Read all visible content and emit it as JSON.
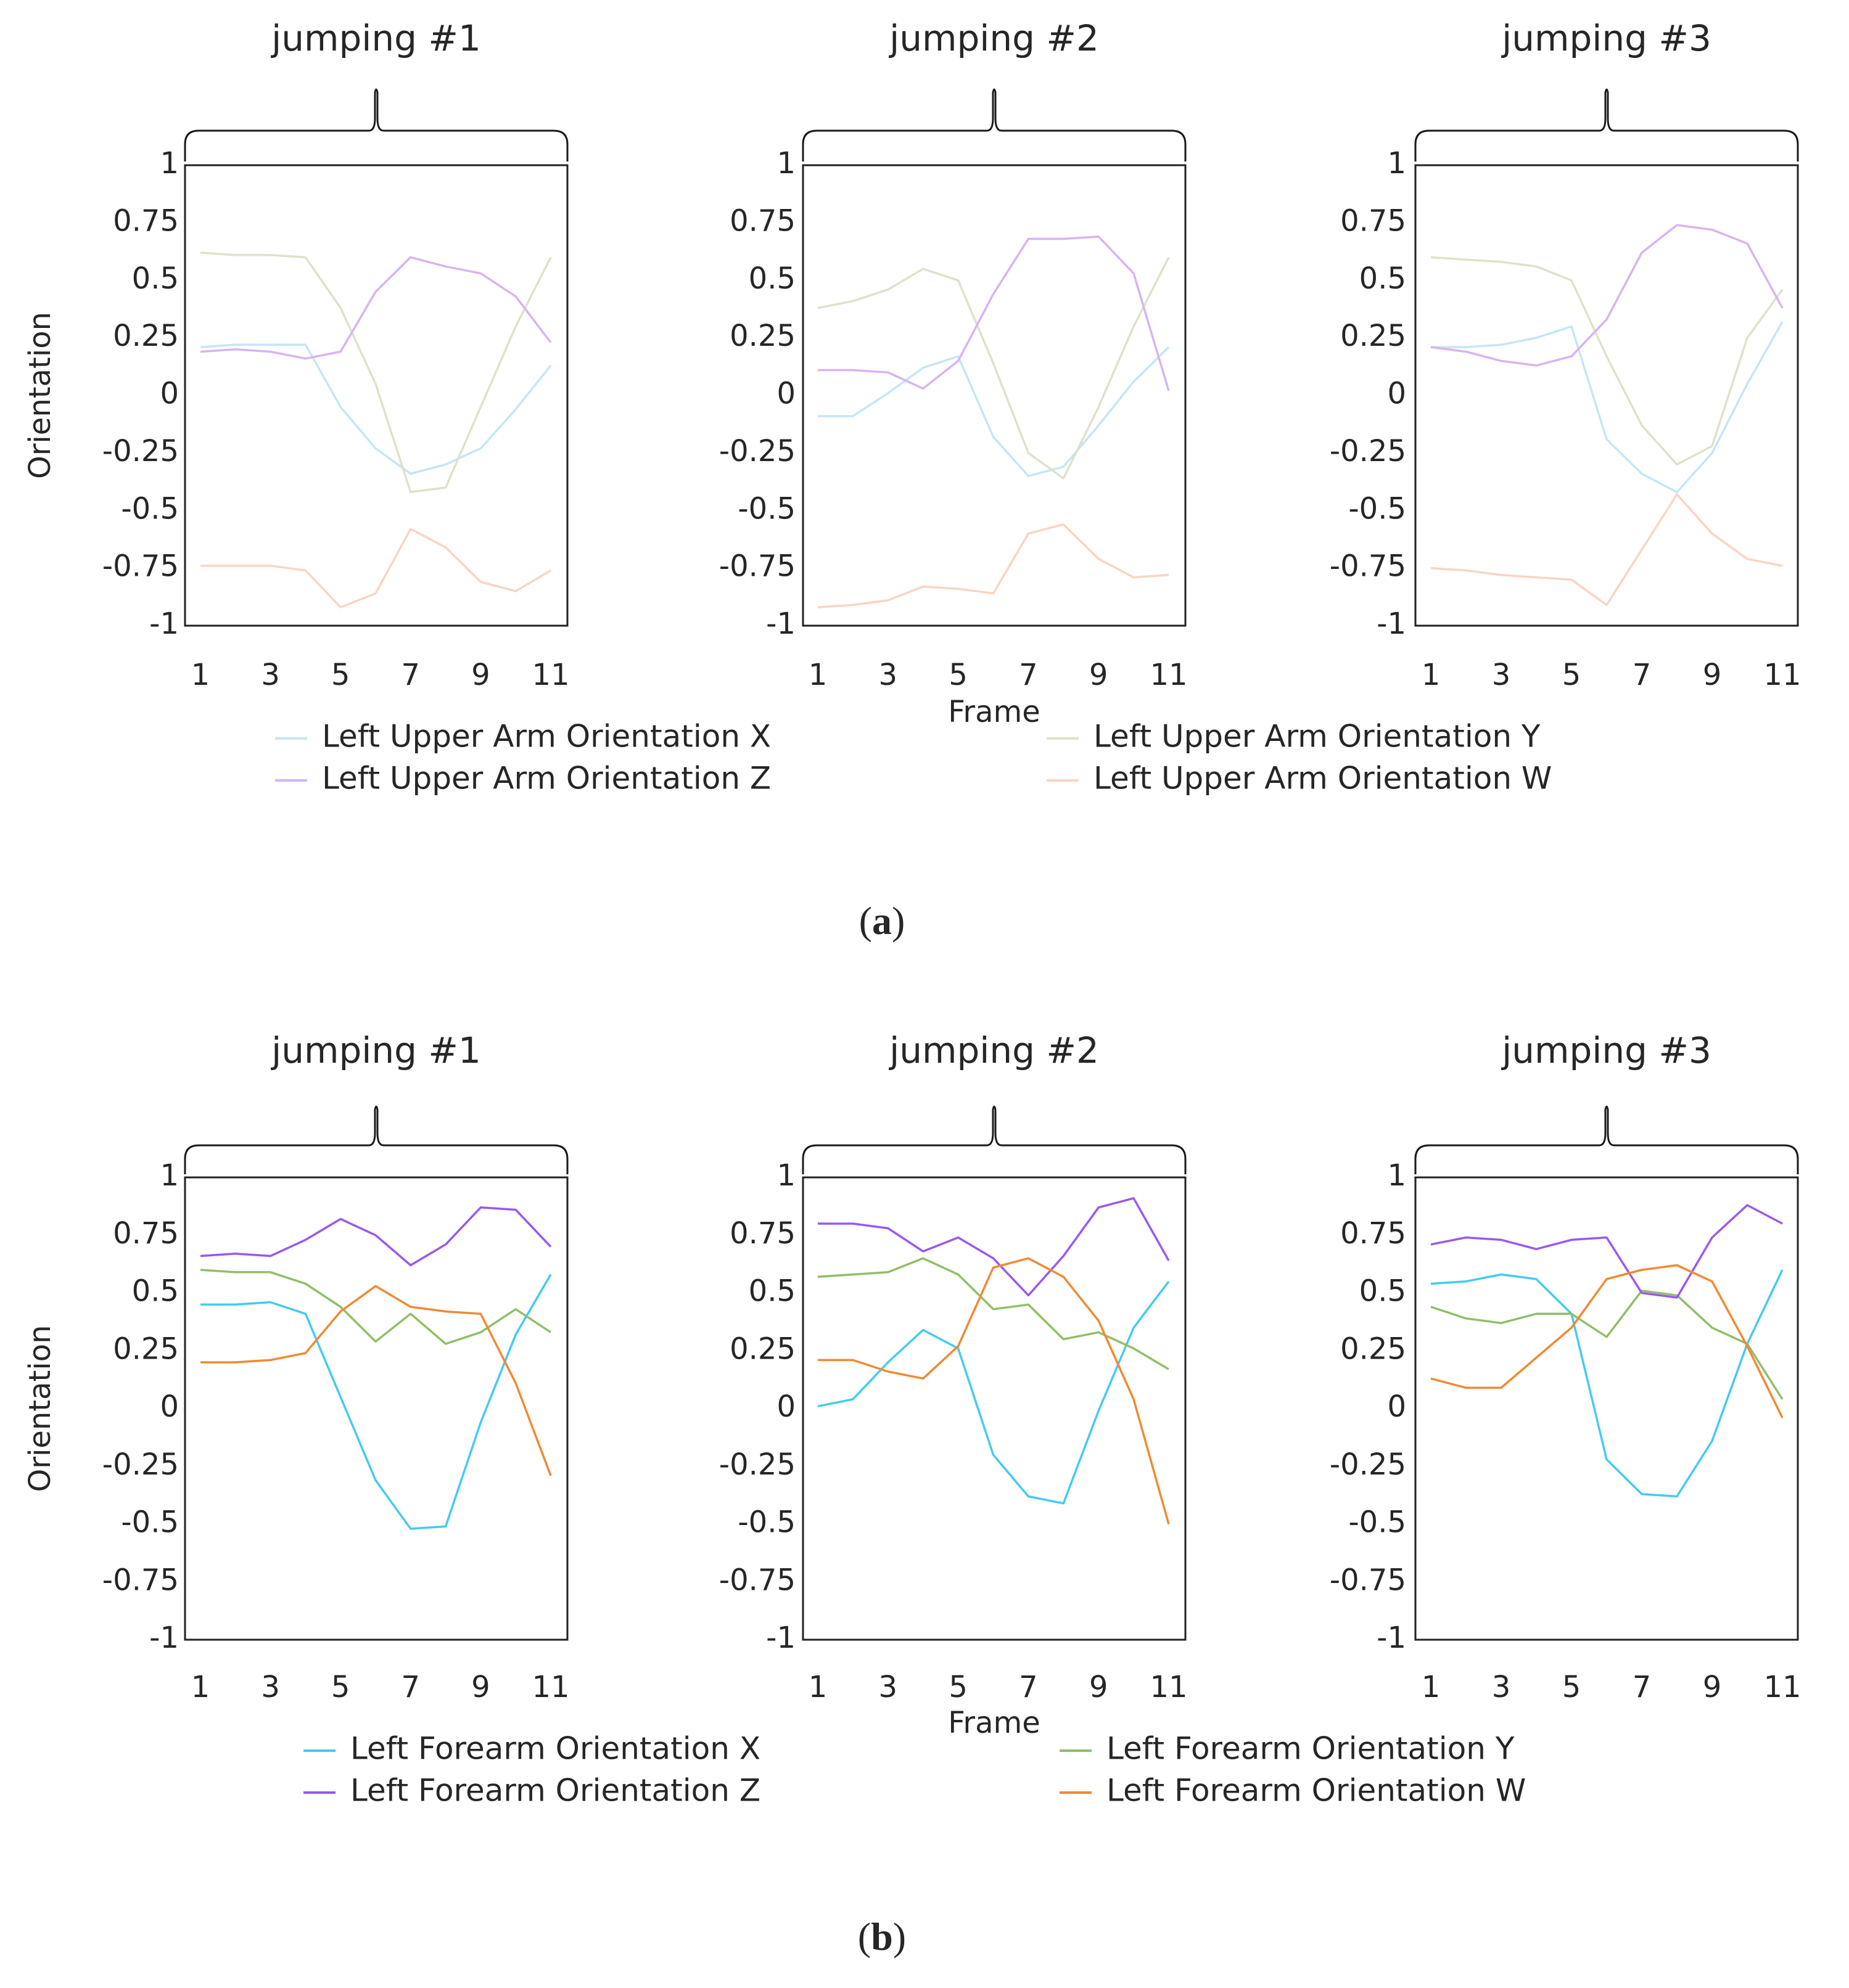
{
  "panel_labels": {
    "a": {
      "open": "(",
      "letter": "a",
      "close": ")"
    },
    "b": {
      "open": "(",
      "letter": "b",
      "close": ")"
    }
  },
  "legend_a": [
    {
      "label": "Left Upper Arm Orientation X",
      "color": "#c5e6f5"
    },
    {
      "label": "Left Upper Arm Orientation Y",
      "color": "#dde3c9"
    },
    {
      "label": "Left Upper Arm Orientation Z",
      "color": "#d7b4f3"
    },
    {
      "label": "Left Upper Arm Orientation W",
      "color": "#f8d5c3"
    }
  ],
  "legend_b": [
    {
      "label": "Left Forearm Orientation X",
      "color": "#44cbef"
    },
    {
      "label": "Left Forearm Orientation Y",
      "color": "#8fbf68"
    },
    {
      "label": "Left Forearm Orientation Z",
      "color": "#9a58f0"
    },
    {
      "label": "Left Forearm Orientation W",
      "color": "#f08a33"
    }
  ],
  "chart_data": [
    {
      "type": "line",
      "group": "a",
      "title": "jumping #1",
      "xlabel": "",
      "ylabel": "Orientation",
      "x": [
        1,
        2,
        3,
        4,
        5,
        6,
        7,
        8,
        9,
        10,
        11
      ],
      "x_ticks": [
        "1",
        "3",
        "5",
        "7",
        "9",
        "11"
      ],
      "ylim": [
        -1,
        1
      ],
      "y_ticks": [
        "1",
        "0.75",
        "0.5",
        "0.25",
        "0",
        "-0.25",
        "-0.5",
        "-0.75",
        "-1"
      ],
      "series": [
        {
          "name": "Left Upper Arm Orientation X",
          "color": "#c5e6f5",
          "values": [
            0.21,
            0.22,
            0.22,
            0.22,
            -0.05,
            -0.23,
            -0.34,
            -0.3,
            -0.23,
            -0.06,
            0.13
          ]
        },
        {
          "name": "Left Upper Arm Orientation Y",
          "color": "#dde3c9",
          "values": [
            0.62,
            0.61,
            0.61,
            0.6,
            0.38,
            0.05,
            -0.42,
            -0.4,
            -0.05,
            0.3,
            0.6
          ]
        },
        {
          "name": "Left Upper Arm Orientation Z",
          "color": "#d7b4f3",
          "values": [
            0.19,
            0.2,
            0.19,
            0.16,
            0.19,
            0.45,
            0.6,
            0.56,
            0.53,
            0.43,
            0.23
          ]
        },
        {
          "name": "Left Upper Arm Orientation W",
          "color": "#f8d5c3",
          "values": [
            -0.74,
            -0.74,
            -0.74,
            -0.76,
            -0.92,
            -0.86,
            -0.58,
            -0.66,
            -0.81,
            -0.85,
            -0.76
          ]
        }
      ]
    },
    {
      "type": "line",
      "group": "a",
      "title": "jumping #2",
      "xlabel": "Frame",
      "ylabel": "",
      "x": [
        1,
        2,
        3,
        4,
        5,
        6,
        7,
        8,
        9,
        10,
        11
      ],
      "x_ticks": [
        "1",
        "3",
        "5",
        "7",
        "9",
        "11"
      ],
      "ylim": [
        -1,
        1
      ],
      "y_ticks": [
        "1",
        "0.75",
        "0.5",
        "0.25",
        "0",
        "-0.25",
        "-0.5",
        "-0.75",
        "-1"
      ],
      "series": [
        {
          "name": "Left Upper Arm Orientation X",
          "color": "#c5e6f5",
          "values": [
            -0.09,
            -0.09,
            0.01,
            0.12,
            0.17,
            -0.18,
            -0.35,
            -0.31,
            -0.13,
            0.06,
            0.21
          ]
        },
        {
          "name": "Left Upper Arm Orientation Y",
          "color": "#dde3c9",
          "values": [
            0.38,
            0.41,
            0.46,
            0.55,
            0.5,
            0.14,
            -0.25,
            -0.36,
            -0.05,
            0.3,
            0.6
          ]
        },
        {
          "name": "Left Upper Arm Orientation Z",
          "color": "#d7b4f3",
          "values": [
            0.11,
            0.11,
            0.1,
            0.03,
            0.15,
            0.44,
            0.68,
            0.68,
            0.69,
            0.53,
            0.02
          ]
        },
        {
          "name": "Left Upper Arm Orientation W",
          "color": "#f8d5c3",
          "values": [
            -0.92,
            -0.91,
            -0.89,
            -0.83,
            -0.84,
            -0.86,
            -0.6,
            -0.56,
            -0.71,
            -0.79,
            -0.78
          ]
        }
      ]
    },
    {
      "type": "line",
      "group": "a",
      "title": "jumping #3",
      "xlabel": "",
      "ylabel": "",
      "x": [
        1,
        2,
        3,
        4,
        5,
        6,
        7,
        8,
        9,
        10,
        11
      ],
      "x_ticks": [
        "1",
        "3",
        "5",
        "7",
        "9",
        "11"
      ],
      "ylim": [
        -1,
        1
      ],
      "y_ticks": [
        "1",
        "0.75",
        "0.5",
        "0.25",
        "0",
        "-0.25",
        "-0.5",
        "-0.75",
        "-1"
      ],
      "series": [
        {
          "name": "Left Upper Arm Orientation X",
          "color": "#c5e6f5",
          "values": [
            0.21,
            0.21,
            0.22,
            0.25,
            0.3,
            -0.19,
            -0.34,
            -0.42,
            -0.25,
            0.05,
            0.32
          ]
        },
        {
          "name": "Left Upper Arm Orientation Y",
          "color": "#dde3c9",
          "values": [
            0.6,
            0.59,
            0.58,
            0.56,
            0.5,
            0.17,
            -0.13,
            -0.3,
            -0.22,
            0.25,
            0.46
          ]
        },
        {
          "name": "Left Upper Arm Orientation Z",
          "color": "#d7b4f3",
          "values": [
            0.21,
            0.19,
            0.15,
            0.13,
            0.17,
            0.33,
            0.62,
            0.74,
            0.72,
            0.66,
            0.38
          ]
        },
        {
          "name": "Left Upper Arm Orientation W",
          "color": "#f8d5c3",
          "values": [
            -0.75,
            -0.76,
            -0.78,
            -0.79,
            -0.8,
            -0.91,
            -0.67,
            -0.43,
            -0.6,
            -0.71,
            -0.74
          ]
        }
      ]
    },
    {
      "type": "line",
      "group": "b",
      "title": "jumping #1",
      "xlabel": "",
      "ylabel": "Orientation",
      "x": [
        1,
        2,
        3,
        4,
        5,
        6,
        7,
        8,
        9,
        10,
        11
      ],
      "x_ticks": [
        "1",
        "3",
        "5",
        "7",
        "9",
        "11"
      ],
      "ylim": [
        -1,
        1
      ],
      "y_ticks": [
        "1",
        "0.75",
        "0.5",
        "0.25",
        "0",
        "-0.25",
        "-0.5",
        "-0.75",
        "-1"
      ],
      "series": [
        {
          "name": "Left Forearm Orientation X",
          "color": "#44cbef",
          "values": [
            0.45,
            0.45,
            0.46,
            0.41,
            0.05,
            -0.31,
            -0.52,
            -0.51,
            -0.06,
            0.32,
            0.58
          ]
        },
        {
          "name": "Left Forearm Orientation Y",
          "color": "#8fbf68",
          "values": [
            0.6,
            0.59,
            0.59,
            0.54,
            0.44,
            0.29,
            0.41,
            0.28,
            0.33,
            0.43,
            0.33
          ]
        },
        {
          "name": "Left Forearm Orientation Z",
          "color": "#9a58f0",
          "values": [
            0.66,
            0.67,
            0.66,
            0.73,
            0.82,
            0.75,
            0.62,
            0.71,
            0.87,
            0.86,
            0.7
          ]
        },
        {
          "name": "Left Forearm Orientation W",
          "color": "#f08a33",
          "values": [
            0.2,
            0.2,
            0.21,
            0.24,
            0.42,
            0.53,
            0.44,
            0.42,
            0.41,
            0.11,
            -0.29
          ]
        }
      ]
    },
    {
      "type": "line",
      "group": "b",
      "title": "jumping #2",
      "xlabel": "Frame",
      "ylabel": "",
      "x": [
        1,
        2,
        3,
        4,
        5,
        6,
        7,
        8,
        9,
        10,
        11
      ],
      "x_ticks": [
        "1",
        "3",
        "5",
        "7",
        "9",
        "11"
      ],
      "ylim": [
        -1,
        1
      ],
      "y_ticks": [
        "1",
        "0.75",
        "0.5",
        "0.25",
        "0",
        "-0.25",
        "-0.5",
        "-0.75",
        "-1"
      ],
      "series": [
        {
          "name": "Left Forearm Orientation X",
          "color": "#44cbef",
          "values": [
            0.01,
            0.04,
            0.2,
            0.34,
            0.26,
            -0.2,
            -0.38,
            -0.41,
            -0.01,
            0.35,
            0.55
          ]
        },
        {
          "name": "Left Forearm Orientation Y",
          "color": "#8fbf68",
          "values": [
            0.57,
            0.58,
            0.59,
            0.65,
            0.58,
            0.43,
            0.45,
            0.3,
            0.33,
            0.26,
            0.17
          ]
        },
        {
          "name": "Left Forearm Orientation Z",
          "color": "#9a58f0",
          "values": [
            0.8,
            0.8,
            0.78,
            0.68,
            0.74,
            0.65,
            0.49,
            0.66,
            0.87,
            0.91,
            0.64
          ]
        },
        {
          "name": "Left Forearm Orientation W",
          "color": "#f08a33",
          "values": [
            0.21,
            0.21,
            0.16,
            0.13,
            0.27,
            0.61,
            0.65,
            0.57,
            0.38,
            0.04,
            -0.5
          ]
        }
      ]
    },
    {
      "type": "line",
      "group": "b",
      "title": "jumping #3",
      "xlabel": "",
      "ylabel": "",
      "x": [
        1,
        2,
        3,
        4,
        5,
        6,
        7,
        8,
        9,
        10,
        11
      ],
      "x_ticks": [
        "1",
        "3",
        "5",
        "7",
        "9",
        "11"
      ],
      "ylim": [
        -1,
        1
      ],
      "y_ticks": [
        "1",
        "0.75",
        "0.5",
        "0.25",
        "0",
        "-0.25",
        "-0.5",
        "-0.75",
        "-1"
      ],
      "series": [
        {
          "name": "Left Forearm Orientation X",
          "color": "#44cbef",
          "values": [
            0.54,
            0.55,
            0.58,
            0.56,
            0.41,
            -0.22,
            -0.37,
            -0.38,
            -0.14,
            0.28,
            0.6
          ]
        },
        {
          "name": "Left Forearm Orientation Y",
          "color": "#8fbf68",
          "values": [
            0.44,
            0.39,
            0.37,
            0.41,
            0.41,
            0.31,
            0.51,
            0.49,
            0.35,
            0.28,
            0.04
          ]
        },
        {
          "name": "Left Forearm Orientation Z",
          "color": "#9a58f0",
          "values": [
            0.71,
            0.74,
            0.73,
            0.69,
            0.73,
            0.74,
            0.5,
            0.48,
            0.74,
            0.88,
            0.8
          ]
        },
        {
          "name": "Left Forearm Orientation W",
          "color": "#f08a33",
          "values": [
            0.13,
            0.09,
            0.09,
            0.22,
            0.35,
            0.56,
            0.6,
            0.62,
            0.55,
            0.27,
            -0.04
          ]
        }
      ]
    }
  ]
}
